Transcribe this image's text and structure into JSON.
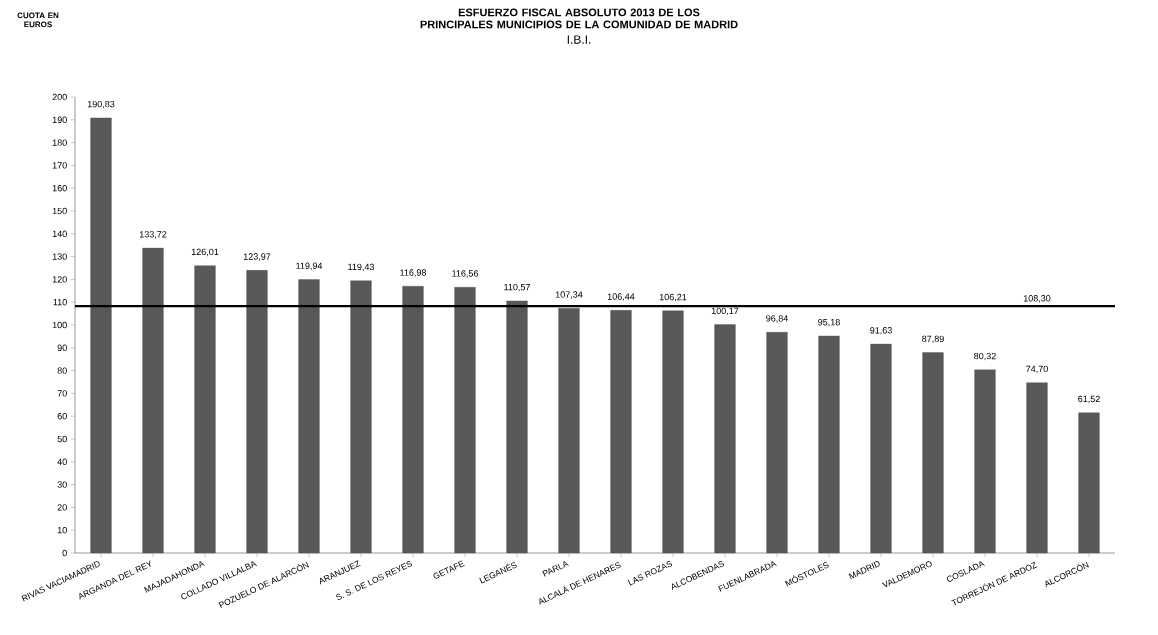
{
  "chart_data": {
    "type": "bar",
    "title": "ESFUERZO FISCAL ABSOLUTO 2013 DE LOS PRINCIPALES MUNICIPIOS DE LA COMUNIDAD DE MADRID",
    "subtitle": "I.B.I.",
    "annotations": [
      "CUOTA EN EUROS"
    ],
    "categories": [
      "RIVAS VACIAMADRID",
      "ARGANDA DEL REY",
      "MAJADAHONDA",
      "COLLADO VILLALBA",
      "POZUELO DE ALARCÓN",
      "ARANJUEZ",
      "S. S. DE LOS REYES",
      "GETAFE",
      "LEGANÉS",
      "PARLA",
      "ALCALÁ DE HENARES",
      "LAS ROZAS",
      "ALCOBENDAS",
      "FUENLABRADA",
      "MÓSTOLES",
      "MADRID",
      "VALDEMORO",
      "COSLADA",
      "TORREJÓN DE ARDOZ",
      "ALCORCÓN"
    ],
    "values": [
      190.83,
      133.72,
      126.01,
      123.97,
      119.94,
      119.43,
      116.98,
      116.56,
      110.57,
      107.34,
      106.44,
      106.21,
      100.17,
      96.84,
      95.18,
      91.63,
      87.89,
      80.32,
      74.7,
      61.52
    ],
    "value_labels": [
      "190,83",
      "133,72",
      "126,01",
      "123,97",
      "119,94",
      "119,43",
      "116,98",
      "116,56",
      "110,57",
      "107,34",
      "106,44",
      "106,21",
      "100,17",
      "96,84",
      "95,18",
      "91,63",
      "87,89",
      "80,32",
      "74,70",
      "61,52"
    ],
    "color": "#585858",
    "ylim": [
      0,
      200
    ],
    "yticks": [
      0,
      10,
      20,
      30,
      40,
      50,
      60,
      70,
      80,
      90,
      100,
      110,
      120,
      130,
      140,
      150,
      160,
      170,
      180,
      190,
      200
    ],
    "ref_lines": [
      {
        "axis": "y",
        "value": 108.3,
        "label": "108,30",
        "color": "#000000"
      }
    ]
  }
}
